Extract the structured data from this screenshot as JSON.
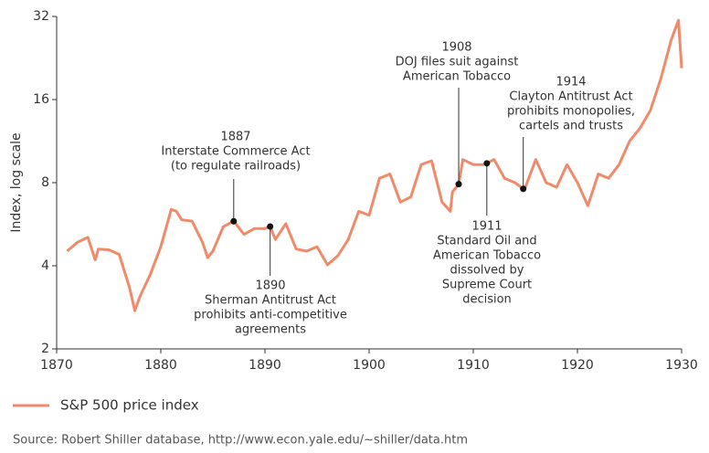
{
  "chart_data": {
    "type": "line",
    "y_label": "Index, log scale",
    "log_y": true,
    "xlim": [
      1870,
      1930
    ],
    "xticks": [
      1870,
      1880,
      1890,
      1900,
      1910,
      1920,
      1930
    ],
    "ylim": [
      2,
      32
    ],
    "yticks": [
      2,
      4,
      8,
      16,
      32
    ],
    "legend": "bottom-left",
    "source": "Source: Robert Shiller database, http://www.econ.yale.edu/~shiller/data.htm",
    "x": [
      1871,
      1872,
      1873,
      1873.7,
      1874,
      1875,
      1876,
      1877,
      1877.5,
      1878,
      1879,
      1880,
      1881,
      1881.5,
      1882,
      1883,
      1884,
      1884.5,
      1885,
      1886,
      1887,
      1888,
      1889,
      1890,
      1890.5,
      1891,
      1892,
      1893,
      1894,
      1895,
      1896,
      1897,
      1898,
      1899,
      1900,
      1901,
      1902,
      1903,
      1904,
      1905,
      1906,
      1907,
      1907.8,
      1908,
      1908.6,
      1909,
      1910,
      1911,
      1911.3,
      1912,
      1913,
      1914,
      1914.8,
      1915,
      1916,
      1917,
      1918,
      1919,
      1920,
      1921,
      1922,
      1923,
      1924,
      1925,
      1926,
      1927,
      1928,
      1929,
      1929.7,
      1930
    ],
    "series": [
      {
        "name": "S&P 500 price index",
        "color": "#f08a6a",
        "values": [
          4.52,
          4.87,
          5.07,
          4.2,
          4.6,
          4.57,
          4.4,
          3.33,
          2.75,
          3.1,
          3.73,
          4.69,
          6.4,
          6.3,
          5.87,
          5.8,
          4.87,
          4.28,
          4.52,
          5.54,
          5.8,
          5.2,
          5.46,
          5.46,
          5.55,
          4.98,
          5.68,
          4.6,
          4.52,
          4.69,
          4.03,
          4.35,
          4.98,
          6.3,
          6.1,
          8.3,
          8.6,
          6.8,
          7.1,
          9.3,
          9.6,
          6.8,
          6.3,
          7.4,
          7.9,
          9.7,
          9.3,
          9.3,
          9.4,
          9.7,
          8.3,
          8.0,
          7.6,
          7.7,
          9.7,
          8.0,
          7.7,
          9.3,
          8.0,
          6.6,
          8.6,
          8.3,
          9.3,
          11.3,
          12.6,
          14.6,
          19.0,
          26.3,
          31,
          20.8
        ]
      }
    ],
    "annotations": [
      {
        "x": 1887,
        "value": 5.8,
        "text": [
          "1887",
          "Interstate Commerce Act",
          "(to regulate railroads)"
        ]
      },
      {
        "x": 1890.5,
        "value": 5.55,
        "text": [
          "1890",
          "Sherman Antitrust Act",
          "prohibits anti-competitive",
          "agreements"
        ]
      },
      {
        "x": 1908.6,
        "value": 7.9,
        "text": [
          "1908",
          "DOJ files suit against",
          "American Tobacco"
        ]
      },
      {
        "x": 1911.3,
        "value": 9.4,
        "text": [
          "1911",
          "Standard Oil and",
          "American Tobacco",
          "dissolved by",
          "Supreme Court",
          "decision"
        ]
      },
      {
        "x": 1914.8,
        "value": 7.6,
        "text": [
          "1914",
          "Clayton Antitrust Act",
          "prohibits monopolies,",
          "cartels and trusts"
        ]
      }
    ]
  }
}
